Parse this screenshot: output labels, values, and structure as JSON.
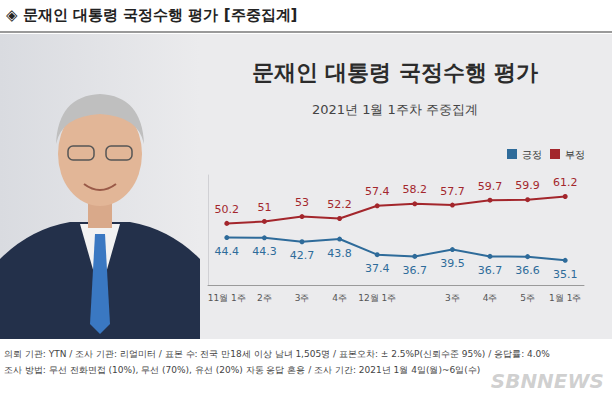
{
  "header": "◈ 문재인 대통령 국정수행 평가 [주중집계]",
  "chart_data": {
    "type": "line",
    "title": "문재인 대통령 국정수행 평가",
    "subtitle": "2021년 1월 1주차 주중집계",
    "categories": [
      "11월 1주",
      "2주",
      "3주",
      "4주",
      "12월 1주",
      null,
      "3주",
      "4주",
      "5주",
      "1월 1주"
    ],
    "series": [
      {
        "name": "긍정",
        "color": "#2e6b9a",
        "values": [
          44.4,
          44.3,
          42.7,
          43.8,
          37.4,
          36.7,
          39.5,
          36.7,
          36.6,
          35.1
        ]
      },
      {
        "name": "부정",
        "color": "#a3262c",
        "values": [
          50.2,
          51.0,
          53.0,
          52.2,
          57.4,
          58.2,
          57.7,
          59.7,
          59.9,
          61.2
        ]
      }
    ],
    "ylim": [
      25,
      70
    ],
    "yticks": [],
    "tick_labels": "x",
    "grid": false,
    "legend": "upper right",
    "data_labels": true,
    "marker": "circle"
  },
  "footnote": [
    "의뢰 기관: YTN / 조사 기관: 리얼미터 / 표본 수: 전국 만18세 이상 남녀 1,505명 / 표본오차: ± 2.5%P(신뢰수준 95%) / 응답률: 4.0%",
    "조사 방법: 무선 전화면접 (10%), 무선 (70%), 유선 (20%) 자동 응답 혼용 / 조사 기간: 2021년 1월 4일(월)~6일(수)"
  ],
  "watermark": "SBNNEWS"
}
